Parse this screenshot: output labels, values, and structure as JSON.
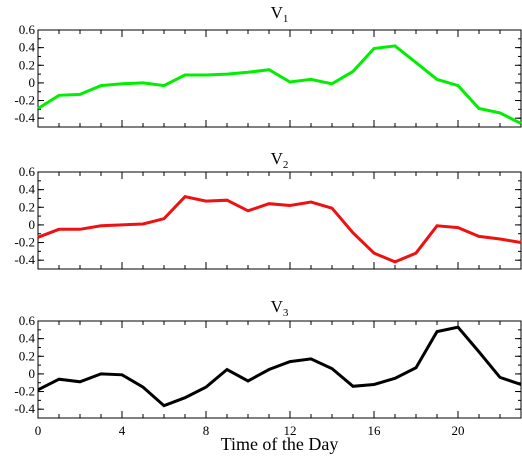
{
  "chart_data": {
    "type": "line",
    "xlabel": "Time of the Day",
    "x_ticks": [
      "0",
      "4",
      "8",
      "12",
      "16",
      "20"
    ],
    "xlim": [
      0,
      23
    ],
    "ylim": [
      -0.5,
      0.6
    ],
    "y_ticks": [
      "0.6",
      "0.4",
      "0.2",
      "0",
      "-0.2",
      "-0.4"
    ],
    "grid": false,
    "panels": [
      {
        "title": "V",
        "title_sub": "1",
        "color": "#00ee00",
        "x": [
          0,
          1,
          2,
          3,
          4,
          5,
          6,
          7,
          8,
          9,
          10,
          11,
          12,
          13,
          14,
          15,
          16,
          17,
          18,
          19,
          20,
          21,
          22,
          23
        ],
        "values": [
          -0.29,
          -0.14,
          -0.13,
          -0.03,
          -0.01,
          0.0,
          -0.03,
          0.09,
          0.09,
          0.1,
          0.12,
          0.15,
          0.01,
          0.04,
          -0.01,
          0.13,
          0.39,
          0.42,
          0.23,
          0.04,
          -0.03,
          -0.29,
          -0.34,
          -0.46
        ]
      },
      {
        "title": "V",
        "title_sub": "2",
        "color": "#ee1111",
        "x": [
          0,
          1,
          2,
          3,
          4,
          5,
          6,
          7,
          8,
          9,
          10,
          11,
          12,
          13,
          14,
          15,
          16,
          17,
          18,
          19,
          20,
          21,
          22,
          23
        ],
        "values": [
          -0.14,
          -0.05,
          -0.05,
          -0.01,
          0.0,
          0.01,
          0.07,
          0.32,
          0.27,
          0.28,
          0.16,
          0.24,
          0.22,
          0.26,
          0.19,
          -0.09,
          -0.32,
          -0.42,
          -0.32,
          -0.01,
          -0.03,
          -0.13,
          -0.16,
          -0.2
        ]
      },
      {
        "title": "V",
        "title_sub": "3",
        "color": "#000000",
        "x": [
          0,
          1,
          2,
          3,
          4,
          5,
          6,
          7,
          8,
          9,
          10,
          11,
          12,
          13,
          14,
          15,
          16,
          17,
          18,
          19,
          20,
          21,
          22,
          23
        ],
        "values": [
          -0.18,
          -0.06,
          -0.09,
          0.0,
          -0.01,
          -0.15,
          -0.36,
          -0.27,
          -0.15,
          0.05,
          -0.08,
          0.05,
          0.14,
          0.17,
          0.06,
          -0.14,
          -0.12,
          -0.05,
          0.07,
          0.48,
          0.53,
          0.25,
          -0.04,
          -0.12
        ]
      }
    ]
  }
}
